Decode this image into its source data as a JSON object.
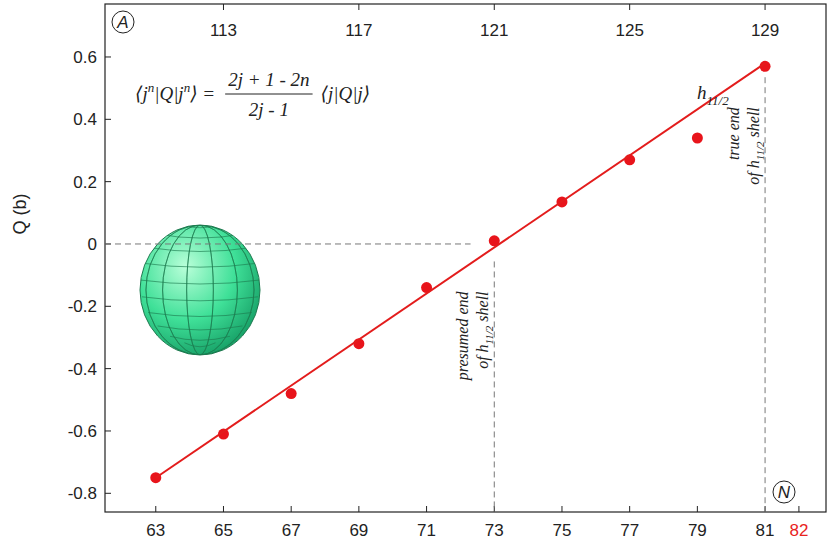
{
  "chart_data": {
    "type": "scatter",
    "x_title": "N",
    "x2_title": "A",
    "y_title": "Q (b)",
    "xlim": [
      61.5,
      82.8
    ],
    "xticks": [
      63,
      65,
      67,
      69,
      71,
      73,
      75,
      77,
      79,
      81,
      {
        "value": 82,
        "label": "82",
        "color": "#e8231e"
      }
    ],
    "x2lim": [
      109.5,
      130.8
    ],
    "x2ticks": [
      113,
      117,
      121,
      125,
      129
    ],
    "ylim": [
      -0.86,
      0.77
    ],
    "yticks": [
      -0.8,
      -0.6,
      -0.4,
      -0.2,
      0,
      0.2,
      0.4,
      0.6
    ],
    "grid": false,
    "series": [
      {
        "type": "scatter",
        "color": "#e8141b",
        "marker": "circle",
        "x": [
          63,
          65,
          67,
          69,
          71,
          73,
          75,
          77,
          79,
          81
        ],
        "values": [
          -0.75,
          -0.61,
          -0.48,
          -0.32,
          -0.14,
          0.01,
          0.135,
          0.27,
          0.34,
          0.57
        ]
      },
      {
        "type": "line",
        "color": "#e31c1c",
        "line_style": "solid",
        "x": [
          63,
          81
        ],
        "values": [
          -0.75,
          0.58
        ]
      }
    ],
    "line_label": [
      "h",
      {
        "sub": "11/2"
      }
    ],
    "zero_line": {
      "y": 0,
      "x_end": 72.3
    },
    "annotations": [
      {
        "x": 73,
        "lines": [
          [
            "presumed end"
          ],
          [
            "of h",
            {
              "sub": "11/2"
            },
            " shell"
          ]
        ]
      },
      {
        "x": 81,
        "lines": [
          [
            "true end"
          ],
          [
            "of h",
            {
              "sub": "11/2"
            },
            " shell"
          ]
        ]
      }
    ],
    "formula": {
      "lhs": [
        "⟨j",
        {
          "sup": "n"
        },
        "|Q|j",
        {
          "sup": "n"
        },
        "⟩ ="
      ],
      "numerator": "2j + 1 - 2n",
      "denominator": "2j - 1",
      "rhs": "⟨j|Q|j⟩"
    }
  }
}
